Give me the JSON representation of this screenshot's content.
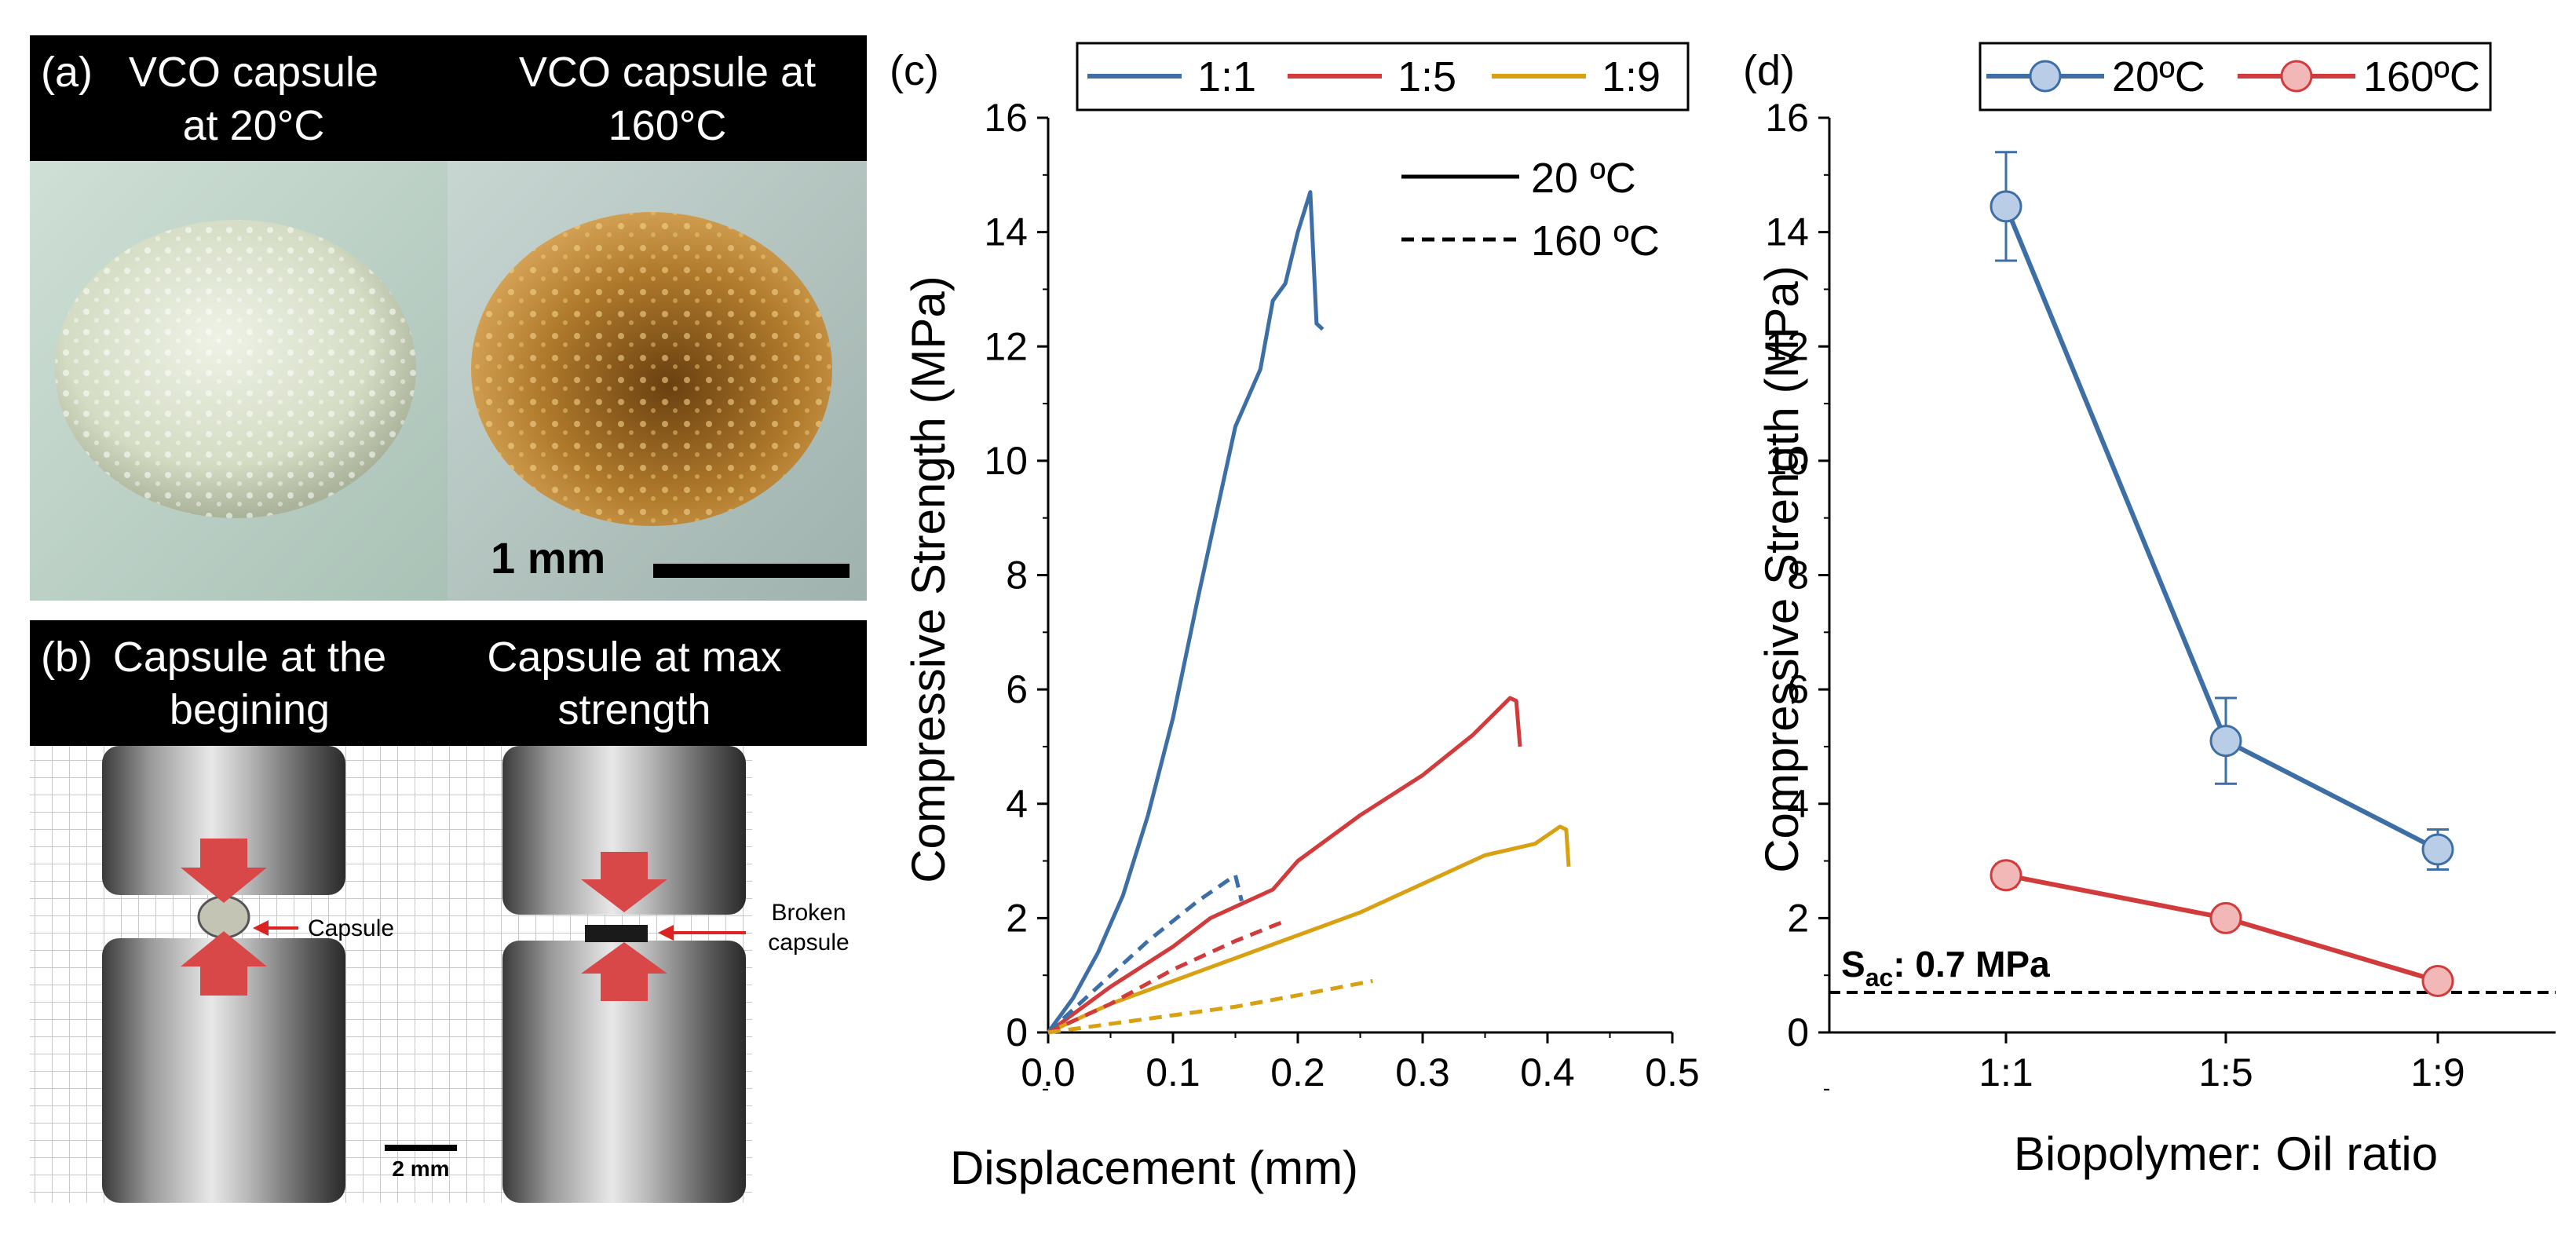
{
  "panel_a": {
    "label": "(a)",
    "left_caption": [
      "VCO capsule",
      "at 20°C"
    ],
    "right_caption": [
      "VCO capsule at",
      "160°C"
    ],
    "scale_label": "1 mm"
  },
  "panel_b": {
    "label": "(b)",
    "left_caption": [
      "Capsule at the",
      "begining"
    ],
    "right_caption": [
      "Capsule at max",
      "strength"
    ],
    "left_arrow_label": "Capsule",
    "right_arrow_label": [
      "Broken",
      "capsule"
    ],
    "scale_label": "2 mm"
  },
  "colors": {
    "blue": "#3d6fa6",
    "red": "#d23b3b",
    "gold": "#d9a012",
    "black": "#000000",
    "marker_blue_fill": "#b9cde6",
    "marker_red_fill": "#f2b8b8",
    "capsule_white": "#dfe6d2",
    "capsule_orange": "#b0782a"
  },
  "chart_data": [
    {
      "panel": "(c)",
      "type": "line",
      "title": "",
      "xlabel": "Displacement (mm)",
      "ylabel": "Compressive Strength (MPa)",
      "xlim": [
        0,
        0.5
      ],
      "ylim": [
        0,
        16
      ],
      "xticks": [
        0.0,
        0.1,
        0.2,
        0.3,
        0.4,
        0.5
      ],
      "xtick_labels": [
        "0.0",
        "0.1",
        "0.2",
        "0.3",
        "0.4",
        "0.5"
      ],
      "yticks": [
        0,
        2,
        4,
        6,
        8,
        10,
        12,
        14,
        16
      ],
      "ytick_labels": [
        "0",
        "2",
        "4",
        "6",
        "8",
        "10",
        "12",
        "14",
        "16"
      ],
      "legend_color": [
        {
          "label": "1:1",
          "color": "#3d6fa6"
        },
        {
          "label": "1:5",
          "color": "#d23b3b"
        },
        {
          "label": "1:9",
          "color": "#d9a012"
        }
      ],
      "legend_style": [
        {
          "label": "20 ºC",
          "style": "solid"
        },
        {
          "label": "160 ºC",
          "style": "dashed"
        }
      ],
      "series": [
        {
          "name": "1:1 20 ºC",
          "color": "#3d6fa6",
          "style": "solid",
          "x": [
            0,
            0.02,
            0.04,
            0.06,
            0.08,
            0.1,
            0.12,
            0.14,
            0.15,
            0.16,
            0.17,
            0.18,
            0.19,
            0.2,
            0.21,
            0.215,
            0.22
          ],
          "y": [
            0,
            0.6,
            1.4,
            2.4,
            3.8,
            5.5,
            7.6,
            9.6,
            10.6,
            11.1,
            11.6,
            12.8,
            13.1,
            14.0,
            14.7,
            12.4,
            12.3
          ]
        },
        {
          "name": "1:5 20 ºC",
          "color": "#d23b3b",
          "style": "solid",
          "x": [
            0,
            0.05,
            0.1,
            0.13,
            0.15,
            0.18,
            0.2,
            0.25,
            0.3,
            0.34,
            0.37,
            0.375,
            0.378
          ],
          "y": [
            0,
            0.8,
            1.5,
            2.0,
            2.2,
            2.5,
            3.0,
            3.8,
            4.5,
            5.2,
            5.85,
            5.8,
            5.0
          ]
        },
        {
          "name": "1:9 20 ºC",
          "color": "#d9a012",
          "style": "solid",
          "x": [
            0,
            0.05,
            0.1,
            0.15,
            0.2,
            0.25,
            0.3,
            0.35,
            0.39,
            0.41,
            0.415,
            0.417
          ],
          "y": [
            0,
            0.5,
            0.9,
            1.3,
            1.7,
            2.1,
            2.6,
            3.1,
            3.3,
            3.6,
            3.55,
            2.9
          ]
        },
        {
          "name": "1:1 160 ºC",
          "color": "#3d6fa6",
          "style": "dashed",
          "x": [
            0,
            0.04,
            0.08,
            0.12,
            0.15,
            0.155
          ],
          "y": [
            0,
            0.8,
            1.6,
            2.3,
            2.75,
            2.3
          ]
        },
        {
          "name": "1:5 160 ºC",
          "color": "#d23b3b",
          "style": "dashed",
          "x": [
            0,
            0.05,
            0.1,
            0.15,
            0.19
          ],
          "y": [
            0,
            0.5,
            1.1,
            1.6,
            1.95
          ]
        },
        {
          "name": "1:9 160 ºC",
          "color": "#d9a012",
          "style": "dashed",
          "x": [
            0,
            0.05,
            0.1,
            0.15,
            0.2,
            0.26
          ],
          "y": [
            0,
            0.15,
            0.3,
            0.45,
            0.65,
            0.9
          ]
        }
      ]
    },
    {
      "panel": "(d)",
      "type": "line",
      "title": "",
      "xlabel": "Biopolymer: Oil ratio",
      "ylabel": "Compressive Strength (MPa)",
      "categories": [
        "1:1",
        "1:5",
        "1:9"
      ],
      "ylim": [
        0,
        16
      ],
      "yticks": [
        0,
        2,
        4,
        6,
        8,
        10,
        12,
        14,
        16
      ],
      "ytick_labels": [
        "0",
        "2",
        "4",
        "6",
        "8",
        "10",
        "12",
        "14",
        "16"
      ],
      "series": [
        {
          "name": "20ºC",
          "color": "#3d6fa6",
          "values": [
            14.45,
            5.1,
            3.2
          ],
          "errors": [
            0.95,
            0.75,
            0.35
          ]
        },
        {
          "name": "160ºC",
          "color": "#d23b3b",
          "values": [
            2.75,
            2.0,
            0.9
          ],
          "errors": [
            0.2,
            0.15,
            0.15
          ]
        }
      ],
      "reference_line": {
        "value": 0.7,
        "label_main": "S",
        "label_sub": "ac",
        "label_rest": ": 0.7 MPa",
        "style": "dashed"
      }
    }
  ]
}
